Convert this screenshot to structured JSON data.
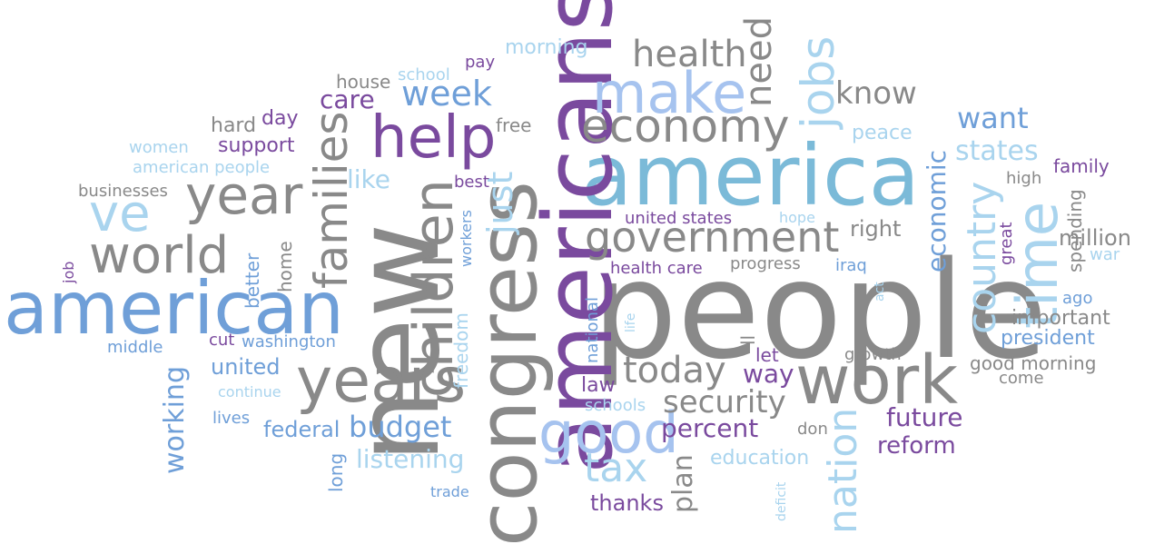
{
  "palette": {
    "gray": "#898989",
    "purple": "#7a4a9e",
    "blue": "#6f9fd8",
    "lightblue": "#a9d4ee",
    "teal": "#7bbad8",
    "periwinkle": "#a6c3ef"
  },
  "words": [
    {
      "text": "people",
      "color": "gray"
    },
    {
      "text": "america",
      "color": "teal"
    },
    {
      "text": "new",
      "color": "gray"
    },
    {
      "text": "americans",
      "color": "purple"
    },
    {
      "text": "congress",
      "color": "gray"
    },
    {
      "text": "american",
      "color": "blue"
    },
    {
      "text": "work",
      "color": "gray"
    },
    {
      "text": "years",
      "color": "gray"
    },
    {
      "text": "children",
      "color": "gray"
    },
    {
      "text": "help",
      "color": "purple"
    },
    {
      "text": "make",
      "color": "periwinkle"
    },
    {
      "text": "time",
      "color": "lightblue"
    },
    {
      "text": "good",
      "color": "periwinkle"
    },
    {
      "text": "year",
      "color": "gray"
    },
    {
      "text": "ve",
      "color": "lightblue"
    },
    {
      "text": "world",
      "color": "gray"
    },
    {
      "text": "government",
      "color": "gray"
    },
    {
      "text": "families",
      "color": "gray"
    },
    {
      "text": "economy",
      "color": "gray"
    },
    {
      "text": "jobs",
      "color": "lightblue"
    },
    {
      "text": "nation",
      "color": "lightblue"
    },
    {
      "text": "country",
      "color": "lightblue"
    },
    {
      "text": "tax",
      "color": "lightblue"
    },
    {
      "text": "today",
      "color": "gray"
    },
    {
      "text": "just",
      "color": "lightblue"
    },
    {
      "text": "health",
      "color": "gray"
    },
    {
      "text": "need",
      "color": "gray"
    },
    {
      "text": "security",
      "color": "gray"
    },
    {
      "text": "week",
      "color": "blue"
    },
    {
      "text": "budget",
      "color": "blue"
    },
    {
      "text": "know",
      "color": "gray"
    },
    {
      "text": "want",
      "color": "blue"
    },
    {
      "text": "states",
      "color": "lightblue"
    },
    {
      "text": "economic",
      "color": "blue"
    },
    {
      "text": "future",
      "color": "purple"
    },
    {
      "text": "percent",
      "color": "purple"
    },
    {
      "text": "working",
      "color": "blue"
    },
    {
      "text": "listening",
      "color": "lightblue"
    },
    {
      "text": "plan",
      "color": "gray"
    },
    {
      "text": "like",
      "color": "lightblue"
    },
    {
      "text": "care",
      "color": "purple"
    },
    {
      "text": "way",
      "color": "purple"
    },
    {
      "text": "reform",
      "color": "purple"
    },
    {
      "text": "president",
      "color": "blue"
    },
    {
      "text": "education",
      "color": "lightblue"
    },
    {
      "text": "thanks",
      "color": "purple"
    },
    {
      "text": "million",
      "color": "gray"
    },
    {
      "text": "right",
      "color": "gray"
    },
    {
      "text": "important",
      "color": "gray"
    },
    {
      "text": "federal",
      "color": "blue"
    },
    {
      "text": "united",
      "color": "blue"
    },
    {
      "text": "support",
      "color": "purple"
    },
    {
      "text": "morning",
      "color": "lightblue"
    },
    {
      "text": "freedom",
      "color": "lightblue"
    },
    {
      "text": "family",
      "color": "purple"
    },
    {
      "text": "spending",
      "color": "gray"
    },
    {
      "text": "hard",
      "color": "gray"
    },
    {
      "text": "day",
      "color": "purple"
    },
    {
      "text": "house",
      "color": "gray"
    },
    {
      "text": "peace",
      "color": "lightblue"
    },
    {
      "text": "united states",
      "color": "purple"
    },
    {
      "text": "progress",
      "color": "gray"
    },
    {
      "text": "home",
      "color": "gray"
    },
    {
      "text": "better",
      "color": "blue"
    },
    {
      "text": "health care",
      "color": "purple"
    },
    {
      "text": "national",
      "color": "blue"
    },
    {
      "text": "washington",
      "color": "blue"
    },
    {
      "text": "lives",
      "color": "blue"
    },
    {
      "text": "good morning",
      "color": "gray"
    },
    {
      "text": "high",
      "color": "gray"
    },
    {
      "text": "growth",
      "color": "gray"
    },
    {
      "text": "law",
      "color": "purple"
    },
    {
      "text": "long",
      "color": "blue"
    },
    {
      "text": "great",
      "color": "purple"
    },
    {
      "text": "women",
      "color": "lightblue"
    },
    {
      "text": "american people",
      "color": "lightblue"
    },
    {
      "text": "businesses",
      "color": "gray"
    },
    {
      "text": "school",
      "color": "lightblue"
    },
    {
      "text": "pay",
      "color": "purple"
    },
    {
      "text": "free",
      "color": "gray"
    },
    {
      "text": "best",
      "color": "purple"
    },
    {
      "text": "workers",
      "color": "blue"
    },
    {
      "text": "cut",
      "color": "purple"
    },
    {
      "text": "continue",
      "color": "lightblue"
    },
    {
      "text": "middle",
      "color": "blue"
    },
    {
      "text": "job",
      "color": "purple"
    },
    {
      "text": "iraq",
      "color": "blue"
    },
    {
      "text": "let",
      "color": "purple"
    },
    {
      "text": "ll",
      "color": "gray"
    },
    {
      "text": "don",
      "color": "gray"
    },
    {
      "text": "hope",
      "color": "lightblue"
    },
    {
      "text": "war",
      "color": "lightblue"
    },
    {
      "text": "ago",
      "color": "blue"
    },
    {
      "text": "come",
      "color": "gray"
    },
    {
      "text": "schools",
      "color": "lightblue"
    },
    {
      "text": "life",
      "color": "lightblue"
    },
    {
      "text": "act",
      "color": "lightblue"
    },
    {
      "text": "trade",
      "color": "blue"
    },
    {
      "text": "deficit",
      "color": "lightblue"
    }
  ]
}
